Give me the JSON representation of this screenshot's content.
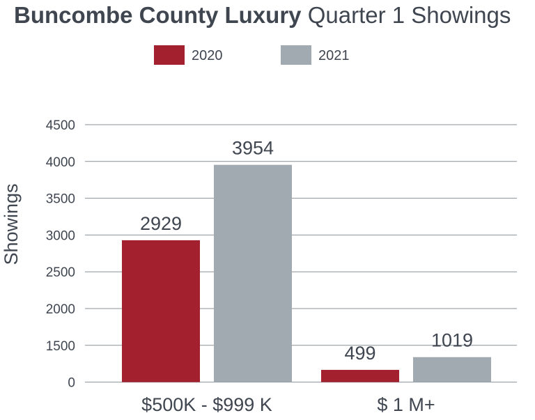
{
  "chart_data": {
    "type": "bar",
    "title_bold": "Buncombe County Luxury",
    "title_rest": "Quarter 1 Showings",
    "ylabel": "Showings",
    "xlabel": "",
    "categories": [
      "$500K - $999 K",
      "$ 1 M+"
    ],
    "series": [
      {
        "name": "2020",
        "values": [
          2929,
          499
        ],
        "color": "#a3202f"
      },
      {
        "name": "2021",
        "values": [
          3954,
          1019
        ],
        "color": "#a1aab0"
      }
    ],
    "yticks": [
      "0",
      "1500",
      "2000",
      "2500",
      "3000",
      "3500",
      "4000",
      "4500"
    ],
    "legend_position": "top-center",
    "grid": true
  }
}
